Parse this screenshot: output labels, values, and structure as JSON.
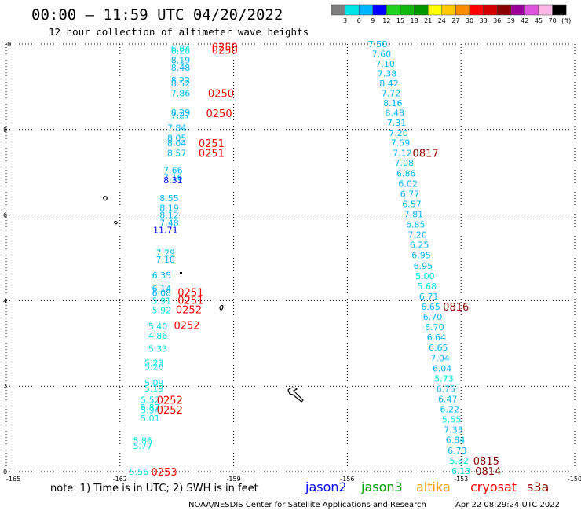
{
  "header": {
    "title": "00:00 – 11:59 UTC 04/20/2022",
    "subtitle": "12 hour collection of altimeter wave heights"
  },
  "colorbar": {
    "labels": [
      "3",
      "6",
      "9",
      "12",
      "15",
      "18",
      "21",
      "24",
      "27",
      "30",
      "33",
      "36",
      "39",
      "42",
      "45",
      "70",
      "(ft)"
    ],
    "colors": [
      "#7f7f7f",
      "#00e6e6",
      "#00b4ff",
      "#0000ff",
      "#1ed21e",
      "#10b810",
      "#009600",
      "#ffff00",
      "#ffc800",
      "#ff8c00",
      "#ff0000",
      "#d20000",
      "#8b0000",
      "#990099",
      "#dd55dd",
      "#ffb6e6",
      "#000000"
    ]
  },
  "footer": {
    "note": "note: 1) Time is in UTC; 2) SWH is in feet",
    "credit": "NOAA/NESDIS Center for Satellite Applications and Research",
    "timestamp": "Apr 22 08:29:24 UTC 2022",
    "satellites": [
      {
        "name": "jason2",
        "color": "#0000ff"
      },
      {
        "name": "jason3",
        "color": "#00a000"
      },
      {
        "name": "altika",
        "color": "#ff9900"
      },
      {
        "name": "cryosat",
        "color": "#ff0000"
      },
      {
        "name": "s3a",
        "color": "#8b0000"
      }
    ]
  },
  "chart_data": {
    "type": "scatter",
    "title": "00:00 – 11:59 UTC 04/20/2022",
    "subtitle": "12 hour collection of altimeter wave heights",
    "xlim": [
      -165,
      -150
    ],
    "ylim": [
      0,
      10
    ],
    "x_ticks": [
      "-165",
      "-162",
      "-159",
      "-156",
      "-153",
      "-150"
    ],
    "y_ticks": [
      "0",
      "2",
      "4",
      "6",
      "8",
      "10"
    ],
    "grid": true,
    "swh_points": [
      {
        "lon": -160.4,
        "lat": 9.9,
        "v": "6.84",
        "c": "#00e6e6"
      },
      {
        "lon": -160.4,
        "lat": 9.84,
        "v": "6.26",
        "c": "#00e6e6"
      },
      {
        "lon": -160.4,
        "lat": 9.62,
        "v": "8.19",
        "c": "#00b4ff"
      },
      {
        "lon": -160.4,
        "lat": 9.45,
        "v": "8.48",
        "c": "#00b4ff"
      },
      {
        "lon": -160.4,
        "lat": 9.15,
        "v": "8.22",
        "c": "#00b4ff"
      },
      {
        "lon": -160.4,
        "lat": 9.08,
        "v": "8.52",
        "c": "#00b4ff"
      },
      {
        "lon": -160.4,
        "lat": 8.85,
        "v": "7.86",
        "c": "#00b4ff"
      },
      {
        "lon": -160.4,
        "lat": 8.4,
        "v": "8.29",
        "c": "#00b4ff"
      },
      {
        "lon": -160.4,
        "lat": 8.34,
        "v": "7.27",
        "c": "#00b4ff"
      },
      {
        "lon": -160.5,
        "lat": 8.04,
        "v": "7.84",
        "c": "#00b4ff"
      },
      {
        "lon": -160.5,
        "lat": 7.8,
        "v": "8.05",
        "c": "#00b4ff"
      },
      {
        "lon": -160.5,
        "lat": 7.68,
        "v": "8.04",
        "c": "#00b4ff"
      },
      {
        "lon": -160.5,
        "lat": 7.45,
        "v": "8.57",
        "c": "#00b4ff"
      },
      {
        "lon": -160.6,
        "lat": 7.05,
        "v": "7.66",
        "c": "#00b4ff"
      },
      {
        "lon": -160.6,
        "lat": 6.88,
        "v": "7.16",
        "c": "#00b4ff"
      },
      {
        "lon": -160.6,
        "lat": 6.82,
        "v": "8.31",
        "c": "#0000ff"
      },
      {
        "lon": -160.7,
        "lat": 6.4,
        "v": "8.55",
        "c": "#00b4ff"
      },
      {
        "lon": -160.7,
        "lat": 6.17,
        "v": "8.19",
        "c": "#00b4ff"
      },
      {
        "lon": -160.7,
        "lat": 6.0,
        "v": "8.12",
        "c": "#00b4ff"
      },
      {
        "lon": -160.7,
        "lat": 5.82,
        "v": "7.48",
        "c": "#00b4ff"
      },
      {
        "lon": -160.8,
        "lat": 5.65,
        "v": "11.71",
        "c": "#0000ff"
      },
      {
        "lon": -160.8,
        "lat": 5.12,
        "v": "7.29",
        "c": "#00b4ff"
      },
      {
        "lon": -160.8,
        "lat": 4.96,
        "v": "7.18",
        "c": "#00b4ff"
      },
      {
        "lon": -160.9,
        "lat": 4.6,
        "v": "6.35",
        "c": "#00b4ff"
      },
      {
        "lon": -160.9,
        "lat": 4.28,
        "v": "6.14",
        "c": "#00b4ff"
      },
      {
        "lon": -160.9,
        "lat": 4.18,
        "v": "6.08",
        "c": "#00b4ff"
      },
      {
        "lon": -160.9,
        "lat": 4.0,
        "v": "5.91",
        "c": "#00e6e6"
      },
      {
        "lon": -160.9,
        "lat": 3.78,
        "v": "5.92",
        "c": "#00e6e6"
      },
      {
        "lon": -161.0,
        "lat": 3.4,
        "v": "5.40",
        "c": "#00e6e6"
      },
      {
        "lon": -161.0,
        "lat": 3.18,
        "v": "4.86",
        "c": "#00e6e6"
      },
      {
        "lon": -161.0,
        "lat": 2.88,
        "v": "5.33",
        "c": "#00e6e6"
      },
      {
        "lon": -161.1,
        "lat": 2.55,
        "v": "5.23",
        "c": "#00e6e6"
      },
      {
        "lon": -161.1,
        "lat": 2.45,
        "v": "5.26",
        "c": "#00e6e6"
      },
      {
        "lon": -161.1,
        "lat": 2.08,
        "v": "5.09",
        "c": "#00e6e6"
      },
      {
        "lon": -161.1,
        "lat": 1.95,
        "v": "5.19",
        "c": "#00e6e6"
      },
      {
        "lon": -161.2,
        "lat": 1.68,
        "v": "5.52",
        "c": "#00e6e6"
      },
      {
        "lon": -161.2,
        "lat": 1.51,
        "v": "5.87",
        "c": "#00e6e6"
      },
      {
        "lon": -161.2,
        "lat": 1.44,
        "v": "5.94",
        "c": "#00e6e6"
      },
      {
        "lon": -161.2,
        "lat": 1.25,
        "v": "5.01",
        "c": "#00e6e6"
      },
      {
        "lon": -161.4,
        "lat": 0.73,
        "v": "5.86",
        "c": "#00e6e6"
      },
      {
        "lon": -161.4,
        "lat": 0.61,
        "v": "5.77",
        "c": "#00e6e6"
      },
      {
        "lon": -161.5,
        "lat": 0.0,
        "v": "5.56",
        "c": "#00e6e6"
      },
      {
        "lon": -155.2,
        "lat": 10.0,
        "v": "7.50",
        "c": "#00b4ff"
      },
      {
        "lon": -155.1,
        "lat": 9.77,
        "v": "7.60",
        "c": "#00b4ff"
      },
      {
        "lon": -155.0,
        "lat": 9.54,
        "v": "7.10",
        "c": "#00b4ff"
      },
      {
        "lon": -154.95,
        "lat": 9.31,
        "v": "7.38",
        "c": "#00b4ff"
      },
      {
        "lon": -154.9,
        "lat": 9.08,
        "v": "8.42",
        "c": "#00b4ff"
      },
      {
        "lon": -154.85,
        "lat": 8.85,
        "v": "7.72",
        "c": "#00b4ff"
      },
      {
        "lon": -154.8,
        "lat": 8.62,
        "v": "8.16",
        "c": "#00b4ff"
      },
      {
        "lon": -154.75,
        "lat": 8.39,
        "v": "8.48",
        "c": "#00b4ff"
      },
      {
        "lon": -154.7,
        "lat": 8.16,
        "v": "7.31",
        "c": "#00b4ff"
      },
      {
        "lon": -154.65,
        "lat": 7.92,
        "v": "7.20",
        "c": "#00b4ff"
      },
      {
        "lon": -154.6,
        "lat": 7.69,
        "v": "7.59",
        "c": "#00b4ff"
      },
      {
        "lon": -154.55,
        "lat": 7.45,
        "v": "7.12",
        "c": "#00b4ff"
      },
      {
        "lon": -154.5,
        "lat": 7.22,
        "v": "7.08",
        "c": "#00b4ff"
      },
      {
        "lon": -154.45,
        "lat": 6.98,
        "v": "6.86",
        "c": "#00b4ff"
      },
      {
        "lon": -154.4,
        "lat": 6.74,
        "v": "6.02",
        "c": "#00b4ff"
      },
      {
        "lon": -154.35,
        "lat": 6.5,
        "v": "6.77",
        "c": "#00b4ff"
      },
      {
        "lon": -154.3,
        "lat": 6.26,
        "v": "6.57",
        "c": "#00b4ff"
      },
      {
        "lon": -154.25,
        "lat": 6.02,
        "v": "7.81",
        "c": "#00b4ff"
      },
      {
        "lon": -154.2,
        "lat": 5.78,
        "v": "6.85",
        "c": "#00b4ff"
      },
      {
        "lon": -154.15,
        "lat": 5.54,
        "v": "7.20",
        "c": "#00b4ff"
      },
      {
        "lon": -154.1,
        "lat": 5.3,
        "v": "6.25",
        "c": "#00b4ff"
      },
      {
        "lon": -154.05,
        "lat": 5.06,
        "v": "6.95",
        "c": "#00b4ff"
      },
      {
        "lon": -154.0,
        "lat": 4.82,
        "v": "6.95",
        "c": "#00b4ff"
      },
      {
        "lon": -153.95,
        "lat": 4.58,
        "v": "5.00",
        "c": "#00e6e6"
      },
      {
        "lon": -153.9,
        "lat": 4.34,
        "v": "5.68",
        "c": "#00e6e6"
      },
      {
        "lon": -153.85,
        "lat": 4.1,
        "v": "6.71",
        "c": "#00b4ff"
      },
      {
        "lon": -153.8,
        "lat": 3.86,
        "v": "6.65",
        "c": "#00b4ff"
      },
      {
        "lon": -153.75,
        "lat": 3.62,
        "v": "6.70",
        "c": "#00b4ff"
      },
      {
        "lon": -153.7,
        "lat": 3.38,
        "v": "6.70",
        "c": "#00b4ff"
      },
      {
        "lon": -153.65,
        "lat": 3.14,
        "v": "6.64",
        "c": "#00b4ff"
      },
      {
        "lon": -153.6,
        "lat": 2.9,
        "v": "6.65",
        "c": "#00b4ff"
      },
      {
        "lon": -153.55,
        "lat": 2.66,
        "v": "7.04",
        "c": "#00b4ff"
      },
      {
        "lon": -153.5,
        "lat": 2.42,
        "v": "6.04",
        "c": "#00b4ff"
      },
      {
        "lon": -153.45,
        "lat": 2.18,
        "v": "5.73",
        "c": "#00e6e6"
      },
      {
        "lon": -153.4,
        "lat": 1.94,
        "v": "6.75",
        "c": "#00b4ff"
      },
      {
        "lon": -153.35,
        "lat": 1.7,
        "v": "6.47",
        "c": "#00b4ff"
      },
      {
        "lon": -153.3,
        "lat": 1.46,
        "v": "6.22",
        "c": "#00b4ff"
      },
      {
        "lon": -153.25,
        "lat": 1.22,
        "v": "5.55",
        "c": "#00e6e6"
      },
      {
        "lon": -153.2,
        "lat": 0.98,
        "v": "7.33",
        "c": "#00b4ff"
      },
      {
        "lon": -153.15,
        "lat": 0.74,
        "v": "6.84",
        "c": "#00b4ff"
      },
      {
        "lon": -153.1,
        "lat": 0.5,
        "v": "6.73",
        "c": "#00b4ff"
      },
      {
        "lon": -153.05,
        "lat": 0.26,
        "v": "5.82",
        "c": "#00e6e6"
      },
      {
        "lon": -153.0,
        "lat": 0.02,
        "v": "6.13",
        "c": "#00e6e6"
      }
    ],
    "time_labels": [
      {
        "lon": -159.95,
        "lat": 9.94,
        "t": "0250",
        "c": "#ff0000"
      },
      {
        "lon": -159.95,
        "lat": 9.86,
        "t": "0250",
        "c": "#ff0000"
      },
      {
        "lon": -160.05,
        "lat": 8.85,
        "t": "0250",
        "c": "#ff0000"
      },
      {
        "lon": -160.1,
        "lat": 8.38,
        "t": "0250",
        "c": "#ff0000"
      },
      {
        "lon": -160.3,
        "lat": 7.68,
        "t": "0251",
        "c": "#ff0000"
      },
      {
        "lon": -160.3,
        "lat": 7.45,
        "t": "0251",
        "c": "#ff0000"
      },
      {
        "lon": -160.85,
        "lat": 4.2,
        "t": "0251",
        "c": "#ff0000"
      },
      {
        "lon": -160.85,
        "lat": 4.02,
        "t": "0251",
        "c": "#ff0000"
      },
      {
        "lon": -160.9,
        "lat": 3.8,
        "t": "0252",
        "c": "#ff0000"
      },
      {
        "lon": -160.95,
        "lat": 3.43,
        "t": "0252",
        "c": "#ff0000"
      },
      {
        "lon": -161.4,
        "lat": 1.68,
        "t": "0252",
        "c": "#ff0000"
      },
      {
        "lon": -161.4,
        "lat": 1.45,
        "t": "0252",
        "c": "#ff0000"
      },
      {
        "lon": -161.55,
        "lat": 0.0,
        "t": "0253",
        "c": "#ff0000"
      },
      {
        "lon": -154.65,
        "lat": 7.45,
        "t": "0817",
        "c": "#8b0000"
      },
      {
        "lon": -153.85,
        "lat": 3.86,
        "t": "0816",
        "c": "#8b0000"
      },
      {
        "lon": -153.05,
        "lat": 0.26,
        "t": "0815",
        "c": "#8b0000"
      },
      {
        "lon": -153.0,
        "lat": 0.02,
        "t": "0814",
        "c": "#8b0000"
      }
    ]
  }
}
